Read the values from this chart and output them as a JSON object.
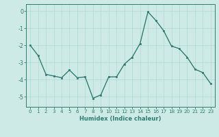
{
  "x": [
    0,
    1,
    2,
    3,
    4,
    5,
    6,
    7,
    8,
    9,
    10,
    11,
    12,
    13,
    14,
    15,
    16,
    17,
    18,
    19,
    20,
    21,
    22,
    23
  ],
  "y": [
    -2.0,
    -2.6,
    -3.7,
    -3.8,
    -3.9,
    -3.45,
    -3.9,
    -3.85,
    -5.1,
    -4.9,
    -3.85,
    -3.85,
    -3.1,
    -2.7,
    -1.9,
    -0.05,
    -0.55,
    -1.15,
    -2.05,
    -2.2,
    -2.7,
    -3.4,
    -3.6,
    -4.25
  ],
  "line_color": "#2e7d6e",
  "marker": "s",
  "markersize": 1.8,
  "linewidth": 1.0,
  "xlabel": "Humidex (Indice chaleur)",
  "xlim": [
    -0.5,
    23.5
  ],
  "ylim": [
    -5.6,
    0.4
  ],
  "yticks": [
    0,
    -1,
    -2,
    -3,
    -4,
    -5
  ],
  "xticks": [
    0,
    1,
    2,
    3,
    4,
    5,
    6,
    7,
    8,
    9,
    10,
    11,
    12,
    13,
    14,
    15,
    16,
    17,
    18,
    19,
    20,
    21,
    22,
    23
  ],
  "bg_color": "#ceeae6",
  "grid_color": "#b0d8d4",
  "tick_color": "#2e7d6e",
  "label_color": "#2e7d6e",
  "xlabel_fontsize": 6.0,
  "tick_fontsize": 5.2
}
